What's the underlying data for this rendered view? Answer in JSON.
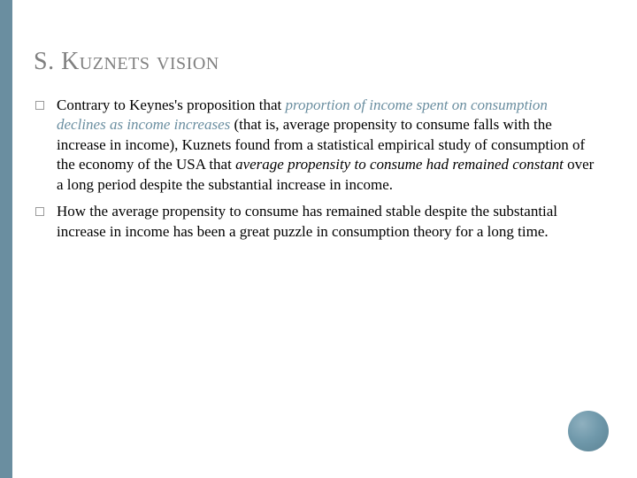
{
  "accent_color": "#6a8ea0",
  "title_color": "#808080",
  "body_color": "#000000",
  "background_color": "#ffffff",
  "title": "S. Kuznets vision",
  "bullets": [
    {
      "pre": "Contrary to Keynes's proposition that ",
      "accent": "proportion of income spent on consumption declines as income increases",
      "mid": " (that is, average propensity to consume falls with the increase in income), Kuznets found from a statistical empirical study of consumption of the economy of the USA that ",
      "em": "average propensity to consume had remained constant",
      "post": " over a long period despite the substantial increase in income."
    },
    {
      "pre": "How the average propensity to consume has remained stable despite the substantial increase in income has been a great puzzle in consumption theory for a long time.",
      "accent": "",
      "mid": "",
      "em": "",
      "post": ""
    }
  ]
}
